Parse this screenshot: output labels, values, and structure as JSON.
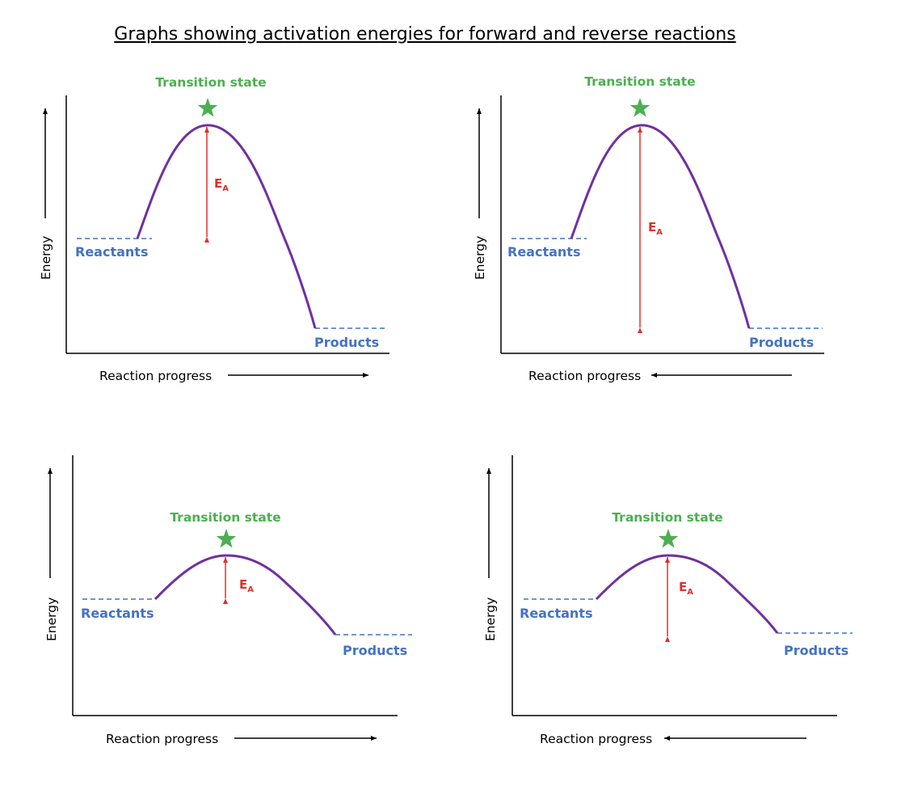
{
  "title": "Graphs showing activation energies for forward and reverse reactions",
  "colors": {
    "curve": "#7030a0",
    "level": "#4472c4",
    "transition": "#4caf50",
    "activation": "#e0302b",
    "axis": "#000000"
  },
  "icons": {
    "transition_marker": "star-icon"
  },
  "panels": [
    {
      "transition_label": "Transition state",
      "reactants_label": "Reactants",
      "products_label": "Products",
      "ea_label": "E",
      "ea_subscript": "A",
      "y_axis_label": "Energy",
      "x_axis_label": "Reaction progress",
      "direction": "forward",
      "ea_measured_from": "reactants"
    },
    {
      "transition_label": "Transition state",
      "reactants_label": "Reactants",
      "products_label": "Products",
      "ea_label": "E",
      "ea_subscript": "A",
      "y_axis_label": "Energy",
      "x_axis_label": "Reaction progress",
      "direction": "reverse",
      "ea_measured_from": "products"
    },
    {
      "transition_label": "Transition state",
      "reactants_label": "Reactants",
      "products_label": "Products",
      "ea_label": "E",
      "ea_subscript": "A",
      "y_axis_label": "Energy",
      "x_axis_label": "Reaction progress",
      "direction": "forward",
      "ea_measured_from": "reactants"
    },
    {
      "transition_label": "Transition state",
      "reactants_label": "Reactants",
      "products_label": "Products",
      "ea_label": "E",
      "ea_subscript": "A",
      "y_axis_label": "Energy",
      "x_axis_label": "Reaction progress",
      "direction": "reverse",
      "ea_measured_from": "products"
    }
  ]
}
